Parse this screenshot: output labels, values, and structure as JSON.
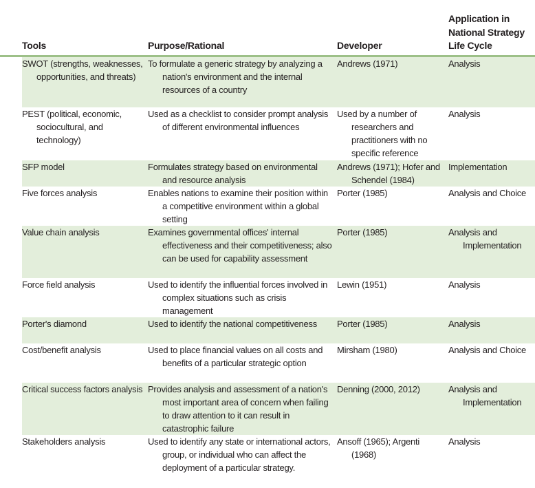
{
  "headers": [
    "Tools",
    "Purpose/Rational",
    "Developer",
    "Application in National Strategy Life Cycle"
  ],
  "rows": [
    {
      "tool": "SWOT (strengths, weaknesses, opportunities, and threats)",
      "purpose": "To formulate a generic strategy by analyzing a nation's environment and the internal resources of a country",
      "developer": "Andrews (1971)",
      "application": "Analysis"
    },
    {
      "tool": "PEST (political, economic, sociocultural, and technology)",
      "purpose": "Used as a checklist to consider prompt analysis of different environmental influences",
      "developer": "Used by a number of researchers and practitioners with no specific reference",
      "application": "Analysis"
    },
    {
      "tool": "SFP model",
      "purpose": "Formulates strategy based on environmental and resource analysis",
      "developer": "Andrews (1971); Hofer and Schendel (1984)",
      "application": "Implementation"
    },
    {
      "tool": "Five forces analysis",
      "purpose": "Enables nations to examine their position within a competitive environment within a global setting",
      "developer": "Porter (1985)",
      "application": "Analysis and Choice"
    },
    {
      "tool": "Value chain analysis",
      "purpose": "Examines governmental offices' internal effectiveness and their competitiveness; also can be used for capability assessment",
      "developer": "Porter (1985)",
      "application": "Analysis and Implementation"
    },
    {
      "tool": "Force field analysis",
      "purpose": "Used to identify the influential forces involved in complex situations such as crisis management",
      "developer": "Lewin (1951)",
      "application": "Analysis"
    },
    {
      "tool": "Porter's diamond",
      "purpose": "Used to identify the national competitiveness",
      "developer": "Porter (1985)",
      "application": "Analysis"
    },
    {
      "tool": "Cost/benefit analysis",
      "purpose": "Used to place financial values on all costs and benefits of a particular strategic option",
      "developer": "Mirsham (1980)",
      "application": "Analysis and Choice"
    },
    {
      "tool": "Critical success factors analysis",
      "purpose": "Provides analysis and assessment of a nation's most important area of concern when failing to draw attention to it can result in catastrophic failure",
      "developer": "Denning (2000, 2012)",
      "application": "Analysis and Implementation"
    },
    {
      "tool": "Stakeholders analysis",
      "purpose": "Used to identify any state or international actors, group, or individual who can affect the deployment of a particular strategy.",
      "developer": "Ansoff (1965); Argenti (1968)",
      "application": "Analysis"
    }
  ],
  "colors": {
    "band": "#e3eedb",
    "rule": "#9dc088"
  }
}
